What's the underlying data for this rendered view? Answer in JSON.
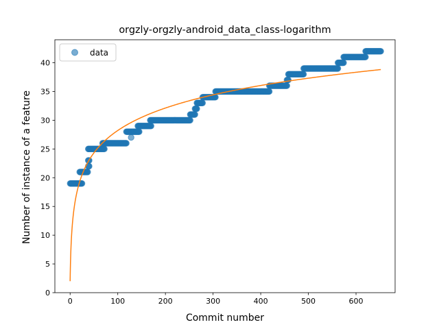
{
  "chart_data": {
    "type": "scatter",
    "title": "orgzly-orgzly-android_data_class-logarithm",
    "xlabel": "Commit number",
    "ylabel": "Number of instance of a feature",
    "xlim": [
      -32,
      682
    ],
    "ylim": [
      0,
      44
    ],
    "xticks": [
      0,
      100,
      200,
      300,
      400,
      500,
      600
    ],
    "yticks": [
      0,
      5,
      10,
      15,
      20,
      25,
      30,
      35,
      40
    ],
    "grid": false,
    "legend": {
      "placement": "upper-left",
      "entries": [
        "data"
      ]
    },
    "series": [
      {
        "name": "data",
        "kind": "points",
        "color": "#1f77b4",
        "alpha": 0.6,
        "segments": [
          {
            "x_from": 0,
            "x_to": 25,
            "y": 19
          },
          {
            "x_from": 20,
            "x_to": 37,
            "y": 21
          },
          {
            "x_from": 38,
            "x_to": 40,
            "y": 22
          },
          {
            "x_from": 38,
            "x_to": 40,
            "y": 23
          },
          {
            "x_from": 38,
            "x_to": 72,
            "y": 25
          },
          {
            "x_from": 68,
            "x_to": 118,
            "y": 26
          },
          {
            "x_from": 128,
            "x_to": 128,
            "y": 27
          },
          {
            "x_from": 118,
            "x_to": 145,
            "y": 28
          },
          {
            "x_from": 142,
            "x_to": 170,
            "y": 29
          },
          {
            "x_from": 168,
            "x_to": 252,
            "y": 30
          },
          {
            "x_from": 252,
            "x_to": 262,
            "y": 31
          },
          {
            "x_from": 262,
            "x_to": 266,
            "y": 32
          },
          {
            "x_from": 266,
            "x_to": 278,
            "y": 33
          },
          {
            "x_from": 278,
            "x_to": 305,
            "y": 34
          },
          {
            "x_from": 305,
            "x_to": 418,
            "y": 35
          },
          {
            "x_from": 418,
            "x_to": 455,
            "y": 36
          },
          {
            "x_from": 455,
            "x_to": 458,
            "y": 37
          },
          {
            "x_from": 458,
            "x_to": 490,
            "y": 38
          },
          {
            "x_from": 490,
            "x_to": 562,
            "y": 39
          },
          {
            "x_from": 562,
            "x_to": 574,
            "y": 40
          },
          {
            "x_from": 574,
            "x_to": 620,
            "y": 41
          },
          {
            "x_from": 620,
            "x_to": 652,
            "y": 42
          }
        ]
      },
      {
        "kind": "fit-line",
        "color": "#ff7f0e",
        "equation": "y = a + b*ln(x + 1)",
        "a": 2.0,
        "b": 5.68,
        "x_range": [
          0,
          652
        ]
      }
    ]
  }
}
